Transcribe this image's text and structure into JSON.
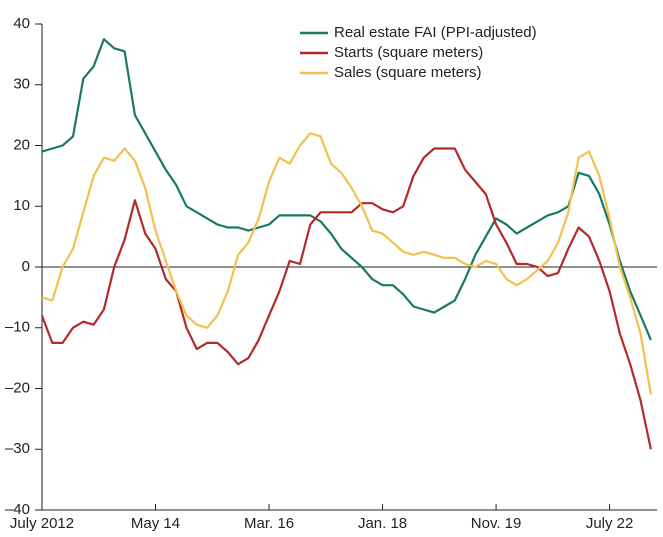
{
  "chart_data": {
    "type": "line",
    "categories": [
      "July 2012",
      null,
      null,
      null,
      null,
      null,
      null,
      null,
      null,
      null,
      null,
      "May 14",
      null,
      null,
      null,
      null,
      null,
      null,
      null,
      null,
      null,
      null,
      "Mar. 16",
      null,
      null,
      null,
      null,
      null,
      null,
      null,
      null,
      null,
      null,
      "Jan. 18",
      null,
      null,
      null,
      null,
      null,
      null,
      null,
      null,
      null,
      null,
      "Nov. 19",
      null,
      null,
      null,
      null,
      null,
      null,
      null,
      null,
      null,
      null,
      "July 22",
      null,
      null,
      null,
      null
    ],
    "series": [
      {
        "name": "Real estate FAI (PPI-adjusted)",
        "color": "#1a7a5e",
        "values": [
          19,
          19.5,
          20,
          21.5,
          31,
          33,
          37.5,
          36,
          35.5,
          25,
          22,
          19,
          16,
          13.5,
          10,
          9,
          8,
          7,
          6.5,
          6.5,
          6,
          6.5,
          7,
          8.5,
          8.5,
          8.5,
          8.5,
          7.5,
          5.5,
          3,
          1.5,
          0,
          -2,
          -3,
          -3,
          -4.5,
          -6.5,
          -7,
          -7.5,
          -6.5,
          -5.5,
          -2,
          2,
          5,
          8,
          7,
          5.5,
          6.5,
          7.5,
          8.5,
          9,
          10,
          15.5,
          15,
          12,
          7,
          1,
          -4,
          -8,
          -12
        ]
      },
      {
        "name": "Starts (square meters)",
        "color": "#b22a2a",
        "values": [
          -8,
          -12.5,
          -12.5,
          -10,
          -9,
          -9.5,
          -7,
          0,
          4.5,
          11,
          5.5,
          3,
          -2,
          -4,
          -10,
          -13.5,
          -12.5,
          -12.5,
          -14,
          -16,
          -15,
          -12,
          -8,
          -4,
          1,
          0.5,
          7,
          9,
          9,
          9,
          9,
          10.5,
          10.5,
          9.5,
          9,
          10,
          15,
          18,
          19.5,
          19.5,
          19.5,
          16,
          14,
          12,
          7,
          4,
          0.5,
          0.5,
          0,
          -1.5,
          -1,
          3,
          6.5,
          5,
          1,
          -4,
          -11,
          -16,
          -22,
          -30
        ]
      },
      {
        "name": "Sales (square meters)",
        "color": "#f2c14e",
        "values": [
          -5,
          -5.5,
          0,
          3,
          9,
          15,
          18,
          17.5,
          19.5,
          17.5,
          13,
          6,
          1,
          -4,
          -8,
          -9.5,
          -10,
          -8,
          -4,
          2,
          4,
          8,
          14,
          18,
          17,
          20,
          22,
          21.5,
          17,
          15.5,
          13,
          10,
          6,
          5.5,
          4,
          2.5,
          2,
          2.5,
          2,
          1.5,
          1.5,
          0.5,
          0,
          1,
          0.5,
          -2,
          -3,
          -2,
          -0.5,
          1,
          4,
          9,
          18,
          19,
          15,
          8,
          0,
          -5,
          -11,
          -21
        ]
      }
    ],
    "ylim": [
      -40,
      40
    ],
    "yticks": [
      {
        "value": -40,
        "label": "–40"
      },
      {
        "value": -30,
        "label": "–30"
      },
      {
        "value": -20,
        "label": "–20"
      },
      {
        "value": -10,
        "label": "–10"
      },
      0,
      10,
      20,
      30,
      40
    ],
    "legend": "top-right"
  }
}
